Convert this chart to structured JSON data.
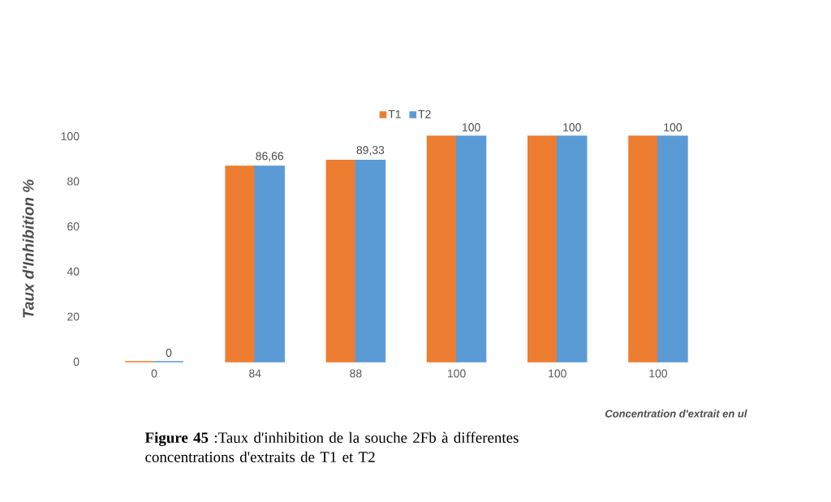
{
  "chart_data": {
    "type": "bar",
    "title": "**Figure 45**  :Taux d'inhibition de la souche 2Fb à differentes concentrations d'extraits de T1 et T2",
    "xlabel": "Concentration d'extrait en ul",
    "ylabel": "Taux d'Inhibition  %",
    "categories": [
      "0",
      "84",
      "88",
      "100",
      "100",
      "100"
    ],
    "series": [
      {
        "name": "T1",
        "color": "#ed7d31",
        "values": [
          0,
          86.66,
          89.33,
          100,
          100,
          100
        ]
      },
      {
        "name": "T2",
        "color": "#5b9bd5",
        "values": [
          0,
          86.66,
          89.33,
          100,
          100,
          100
        ],
        "value_labels": [
          "0",
          "86,66",
          "89,33",
          "100",
          "100",
          "100"
        ]
      }
    ],
    "ylim": [
      0,
      100
    ],
    "yticks": [
      0,
      20,
      40,
      60,
      80,
      100
    ],
    "grid": false,
    "legend": "top"
  }
}
